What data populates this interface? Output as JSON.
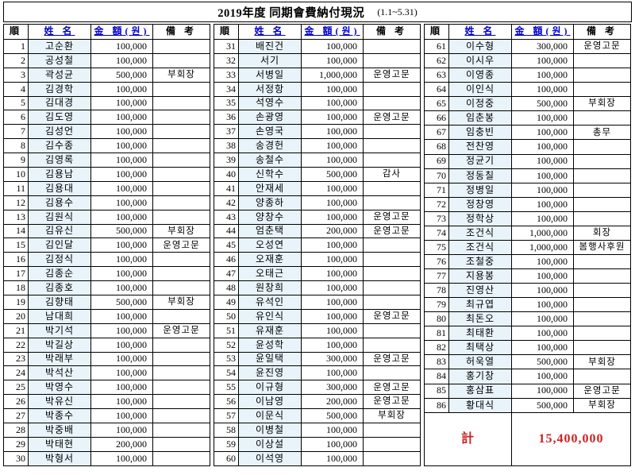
{
  "header": {
    "title": "2019年度 同期會費納付現況",
    "period": "(1.1~5.31)"
  },
  "columns": [
    {
      "label": "順"
    },
    {
      "label": "姓 名"
    },
    {
      "label": "金 額(원)"
    },
    {
      "label": "備 考"
    }
  ],
  "groups": [
    {
      "rows": [
        [
          "1",
          "고순환",
          "100,000",
          ""
        ],
        [
          "2",
          "공성철",
          "100,000",
          ""
        ],
        [
          "3",
          "곽성균",
          "500,000",
          "부회장"
        ],
        [
          "4",
          "김경학",
          "100,000",
          ""
        ],
        [
          "5",
          "김대경",
          "100,000",
          ""
        ],
        [
          "6",
          "김도영",
          "100,000",
          ""
        ],
        [
          "7",
          "김성언",
          "100,000",
          ""
        ],
        [
          "8",
          "김수종",
          "100,000",
          ""
        ],
        [
          "9",
          "김영록",
          "100,000",
          ""
        ],
        [
          "10",
          "김용남",
          "100,000",
          ""
        ],
        [
          "11",
          "김용대",
          "100,000",
          ""
        ],
        [
          "12",
          "김용수",
          "100,000",
          ""
        ],
        [
          "13",
          "김원식",
          "100,000",
          ""
        ],
        [
          "14",
          "김유신",
          "500,000",
          "부회장"
        ],
        [
          "15",
          "김인달",
          "100,000",
          "운영고문"
        ],
        [
          "16",
          "김정식",
          "100,000",
          ""
        ],
        [
          "17",
          "김종순",
          "100,000",
          ""
        ],
        [
          "18",
          "김종호",
          "100,000",
          ""
        ],
        [
          "19",
          "김향태",
          "500,000",
          "부회장"
        ],
        [
          "20",
          "남대희",
          "100,000",
          ""
        ],
        [
          "21",
          "박기석",
          "100,000",
          "운영고문"
        ],
        [
          "22",
          "박길상",
          "100,000",
          ""
        ],
        [
          "23",
          "박래부",
          "100,000",
          ""
        ],
        [
          "24",
          "박석산",
          "100,000",
          ""
        ],
        [
          "25",
          "박영수",
          "100,000",
          ""
        ],
        [
          "26",
          "박유신",
          "100,000",
          ""
        ],
        [
          "27",
          "박종수",
          "100,000",
          ""
        ],
        [
          "28",
          "박중배",
          "100,000",
          ""
        ],
        [
          "29",
          "박태현",
          "200,000",
          ""
        ],
        [
          "30",
          "박형서",
          "100,000",
          ""
        ]
      ]
    },
    {
      "rows": [
        [
          "31",
          "배진건",
          "100,000",
          ""
        ],
        [
          "32",
          "서기",
          "100,000",
          ""
        ],
        [
          "33",
          "서병일",
          "1,000,000",
          "운영고문"
        ],
        [
          "34",
          "서정항",
          "100,000",
          ""
        ],
        [
          "35",
          "석영수",
          "100,000",
          ""
        ],
        [
          "36",
          "손광영",
          "100,000",
          "운영고문"
        ],
        [
          "37",
          "손영국",
          "100,000",
          ""
        ],
        [
          "38",
          "송경헌",
          "100,000",
          ""
        ],
        [
          "39",
          "송철수",
          "100,000",
          ""
        ],
        [
          "40",
          "신학수",
          "500,000",
          "감사"
        ],
        [
          "41",
          "안재세",
          "100,000",
          ""
        ],
        [
          "42",
          "양종하",
          "100,000",
          ""
        ],
        [
          "43",
          "양창수",
          "100,000",
          "운영고문"
        ],
        [
          "44",
          "엄춘택",
          "200,000",
          "운영고문"
        ],
        [
          "45",
          "오성연",
          "100,000",
          ""
        ],
        [
          "46",
          "오재훈",
          "100,000",
          ""
        ],
        [
          "47",
          "오태근",
          "100,000",
          ""
        ],
        [
          "48",
          "원창희",
          "100,000",
          ""
        ],
        [
          "49",
          "유석인",
          "100,000",
          ""
        ],
        [
          "50",
          "유인식",
          "100,000",
          "운영고문"
        ],
        [
          "51",
          "유재훈",
          "100,000",
          ""
        ],
        [
          "52",
          "윤성학",
          "100,000",
          ""
        ],
        [
          "53",
          "윤일택",
          "300,000",
          "운영고문"
        ],
        [
          "54",
          "윤진영",
          "100,000",
          ""
        ],
        [
          "55",
          "이규형",
          "300,000",
          "운영고문"
        ],
        [
          "56",
          "이남영",
          "200,000",
          "운영고문"
        ],
        [
          "57",
          "이문식",
          "500,000",
          "부회장"
        ],
        [
          "58",
          "이병철",
          "100,000",
          ""
        ],
        [
          "59",
          "이상설",
          "100,000",
          ""
        ],
        [
          "60",
          "이석영",
          "100,000",
          ""
        ]
      ]
    },
    {
      "rows": [
        [
          "61",
          "이수형",
          "300,000",
          "운영고문"
        ],
        [
          "62",
          "이시우",
          "100,000",
          ""
        ],
        [
          "63",
          "이영종",
          "100,000",
          ""
        ],
        [
          "64",
          "이인식",
          "100,000",
          ""
        ],
        [
          "65",
          "이정중",
          "500,000",
          "부회장"
        ],
        [
          "66",
          "임춘봉",
          "100,000",
          ""
        ],
        [
          "67",
          "임충빈",
          "100,000",
          "총무"
        ],
        [
          "68",
          "전찬영",
          "100,000",
          ""
        ],
        [
          "69",
          "정균기",
          "100,000",
          ""
        ],
        [
          "70",
          "정동칠",
          "100,000",
          ""
        ],
        [
          "71",
          "정병일",
          "100,000",
          ""
        ],
        [
          "72",
          "정창영",
          "100,000",
          ""
        ],
        [
          "73",
          "정학상",
          "100,000",
          ""
        ],
        [
          "74",
          "조건식",
          "1,000,000",
          "회장"
        ],
        [
          "75",
          "조건식",
          "1,000,000",
          "봄행사후원"
        ],
        [
          "76",
          "조철중",
          "100,000",
          ""
        ],
        [
          "77",
          "지용봉",
          "100,000",
          ""
        ],
        [
          "78",
          "진영산",
          "100,000",
          ""
        ],
        [
          "79",
          "최규엽",
          "100,000",
          ""
        ],
        [
          "80",
          "최돈오",
          "100,000",
          ""
        ],
        [
          "81",
          "최태환",
          "100,000",
          ""
        ],
        [
          "82",
          "최택상",
          "100,000",
          ""
        ],
        [
          "83",
          "허욱열",
          "500,000",
          "부회장"
        ],
        [
          "84",
          "홍기창",
          "100,000",
          ""
        ],
        [
          "85",
          "홍삼표",
          "100,000",
          "운영고문"
        ],
        [
          "86",
          "황대식",
          "500,000",
          "부회장"
        ]
      ]
    }
  ],
  "total": {
    "label": "計",
    "amount": "15,400,000"
  },
  "colors": {
    "header_link_blue": "#0000cc",
    "total_red": "#cc2222",
    "name_cell_bg": "#e8f4fa",
    "border_black": "#000000"
  }
}
